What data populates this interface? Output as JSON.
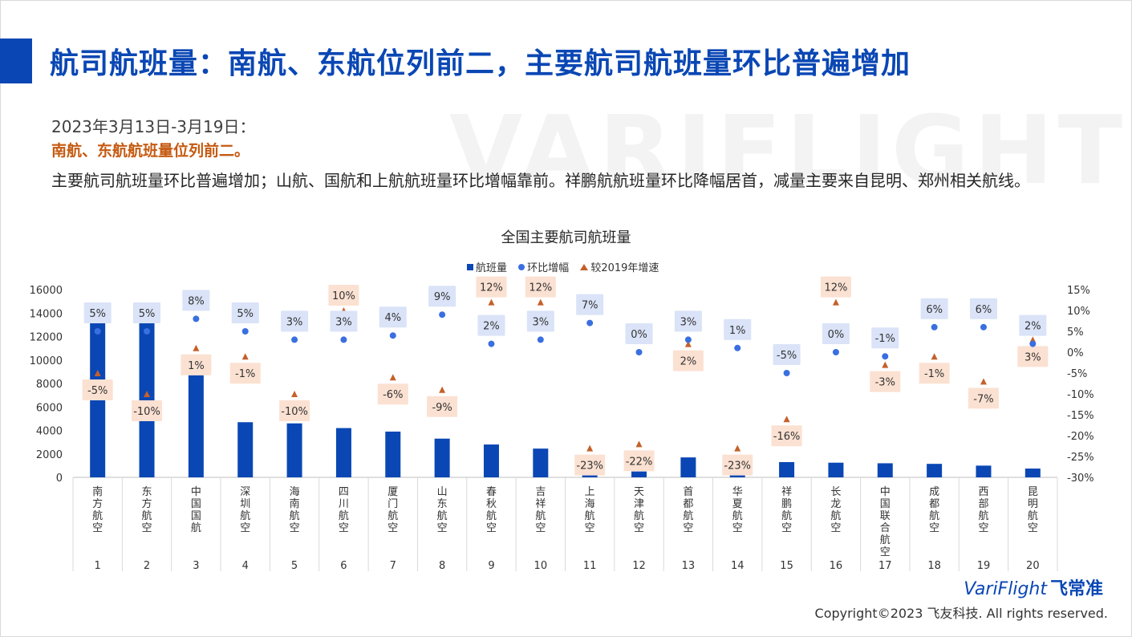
{
  "page": {
    "title": "航司航班量：南航、东航位列前二，主要航司航班量环比普遍增加",
    "watermark": "VARIFLIGHT",
    "line1": "2023年3月13日-3月19日：",
    "line2": "南航、东航航班量位列前二。",
    "line3": "主要航司航班量环比普遍增加；山航、国航和上航航班量环比增幅靠前。祥鹏航航班量环比降幅居首，减量主要来自昆明、郑州相关航线。",
    "brand": "VariFlight",
    "brand_cn": "飞常准",
    "copyright": "Copyright©2023 飞友科技. All rights reserved."
  },
  "colors": {
    "accent": "#0a47b4",
    "bar": "#0a47b4",
    "dot": "#3a6fe0",
    "triangle": "#c5602a",
    "dot_label_bg": "#dae3f7",
    "tri_label_bg": "#fbe1d2"
  },
  "chart_data": {
    "type": "bar",
    "title": "全国主要航司航班量",
    "legend": [
      "航班量",
      "环比增幅",
      "较2019年增速"
    ],
    "legend_position": "top",
    "ranks": [
      "1",
      "2",
      "3",
      "4",
      "5",
      "6",
      "7",
      "8",
      "9",
      "10",
      "11",
      "12",
      "13",
      "14",
      "15",
      "16",
      "17",
      "18",
      "19",
      "20"
    ],
    "categories": [
      "南方航空",
      "东方航空",
      "中国国航",
      "深圳航空",
      "海南航空",
      "四川航空",
      "厦门航空",
      "山东航空",
      "春秋航空",
      "吉祥航空",
      "上海航空",
      "天津航空",
      "首都航空",
      "华夏航空",
      "祥鹏航空",
      "长龙航空",
      "中国联合航空",
      "成都航空",
      "西部航空",
      "昆明航空"
    ],
    "y_left": {
      "min": 0,
      "max": 16000,
      "ticks": [
        "0",
        "2000",
        "4000",
        "6000",
        "8000",
        "10000",
        "12000",
        "14000",
        "16000"
      ]
    },
    "y_right": {
      "min": -30,
      "max": 15,
      "ticks": [
        "-30%",
        "-25%",
        "-20%",
        "-15%",
        "-10%",
        "-5%",
        "0%",
        "5%",
        "10%",
        "15%"
      ]
    },
    "series": [
      {
        "name": "航班量",
        "kind": "bar",
        "values": [
          14700,
          13500,
          8700,
          4700,
          4600,
          4200,
          3900,
          3300,
          2800,
          2450,
          250,
          500,
          1700,
          300,
          1300,
          1250,
          1200,
          1150,
          1000,
          750
        ]
      },
      {
        "name": "环比增幅",
        "kind": "dot",
        "values": [
          5,
          5,
          8,
          5,
          3,
          3,
          4,
          9,
          2,
          3,
          7,
          0,
          3,
          1,
          -5,
          0,
          -1,
          6,
          6,
          2
        ],
        "labels": [
          "5%",
          "5%",
          "8%",
          "5%",
          "3%",
          "3%",
          "4%",
          "9%",
          "2%",
          "3%",
          "7%",
          "0%",
          "3%",
          "1%",
          "-5%",
          "0%",
          "-1%",
          "6%",
          "6%",
          "2%"
        ]
      },
      {
        "name": "较2019年增速",
        "kind": "triangle",
        "values": [
          -5,
          -10,
          1,
          -1,
          -10,
          10,
          -6,
          -9,
          12,
          12,
          -23,
          -22,
          2,
          -23,
          -16,
          12,
          -3,
          -1,
          -7,
          3
        ],
        "labels": [
          "-5%",
          "-10%",
          "1%",
          "-1%",
          "-10%",
          "10%",
          "-6%",
          "-9%",
          "12%",
          "12%",
          "-23%",
          "-22%",
          "2%",
          "-23%",
          "-16%",
          "12%",
          "-3%",
          "-1%",
          "-7%",
          "3%"
        ]
      }
    ]
  }
}
